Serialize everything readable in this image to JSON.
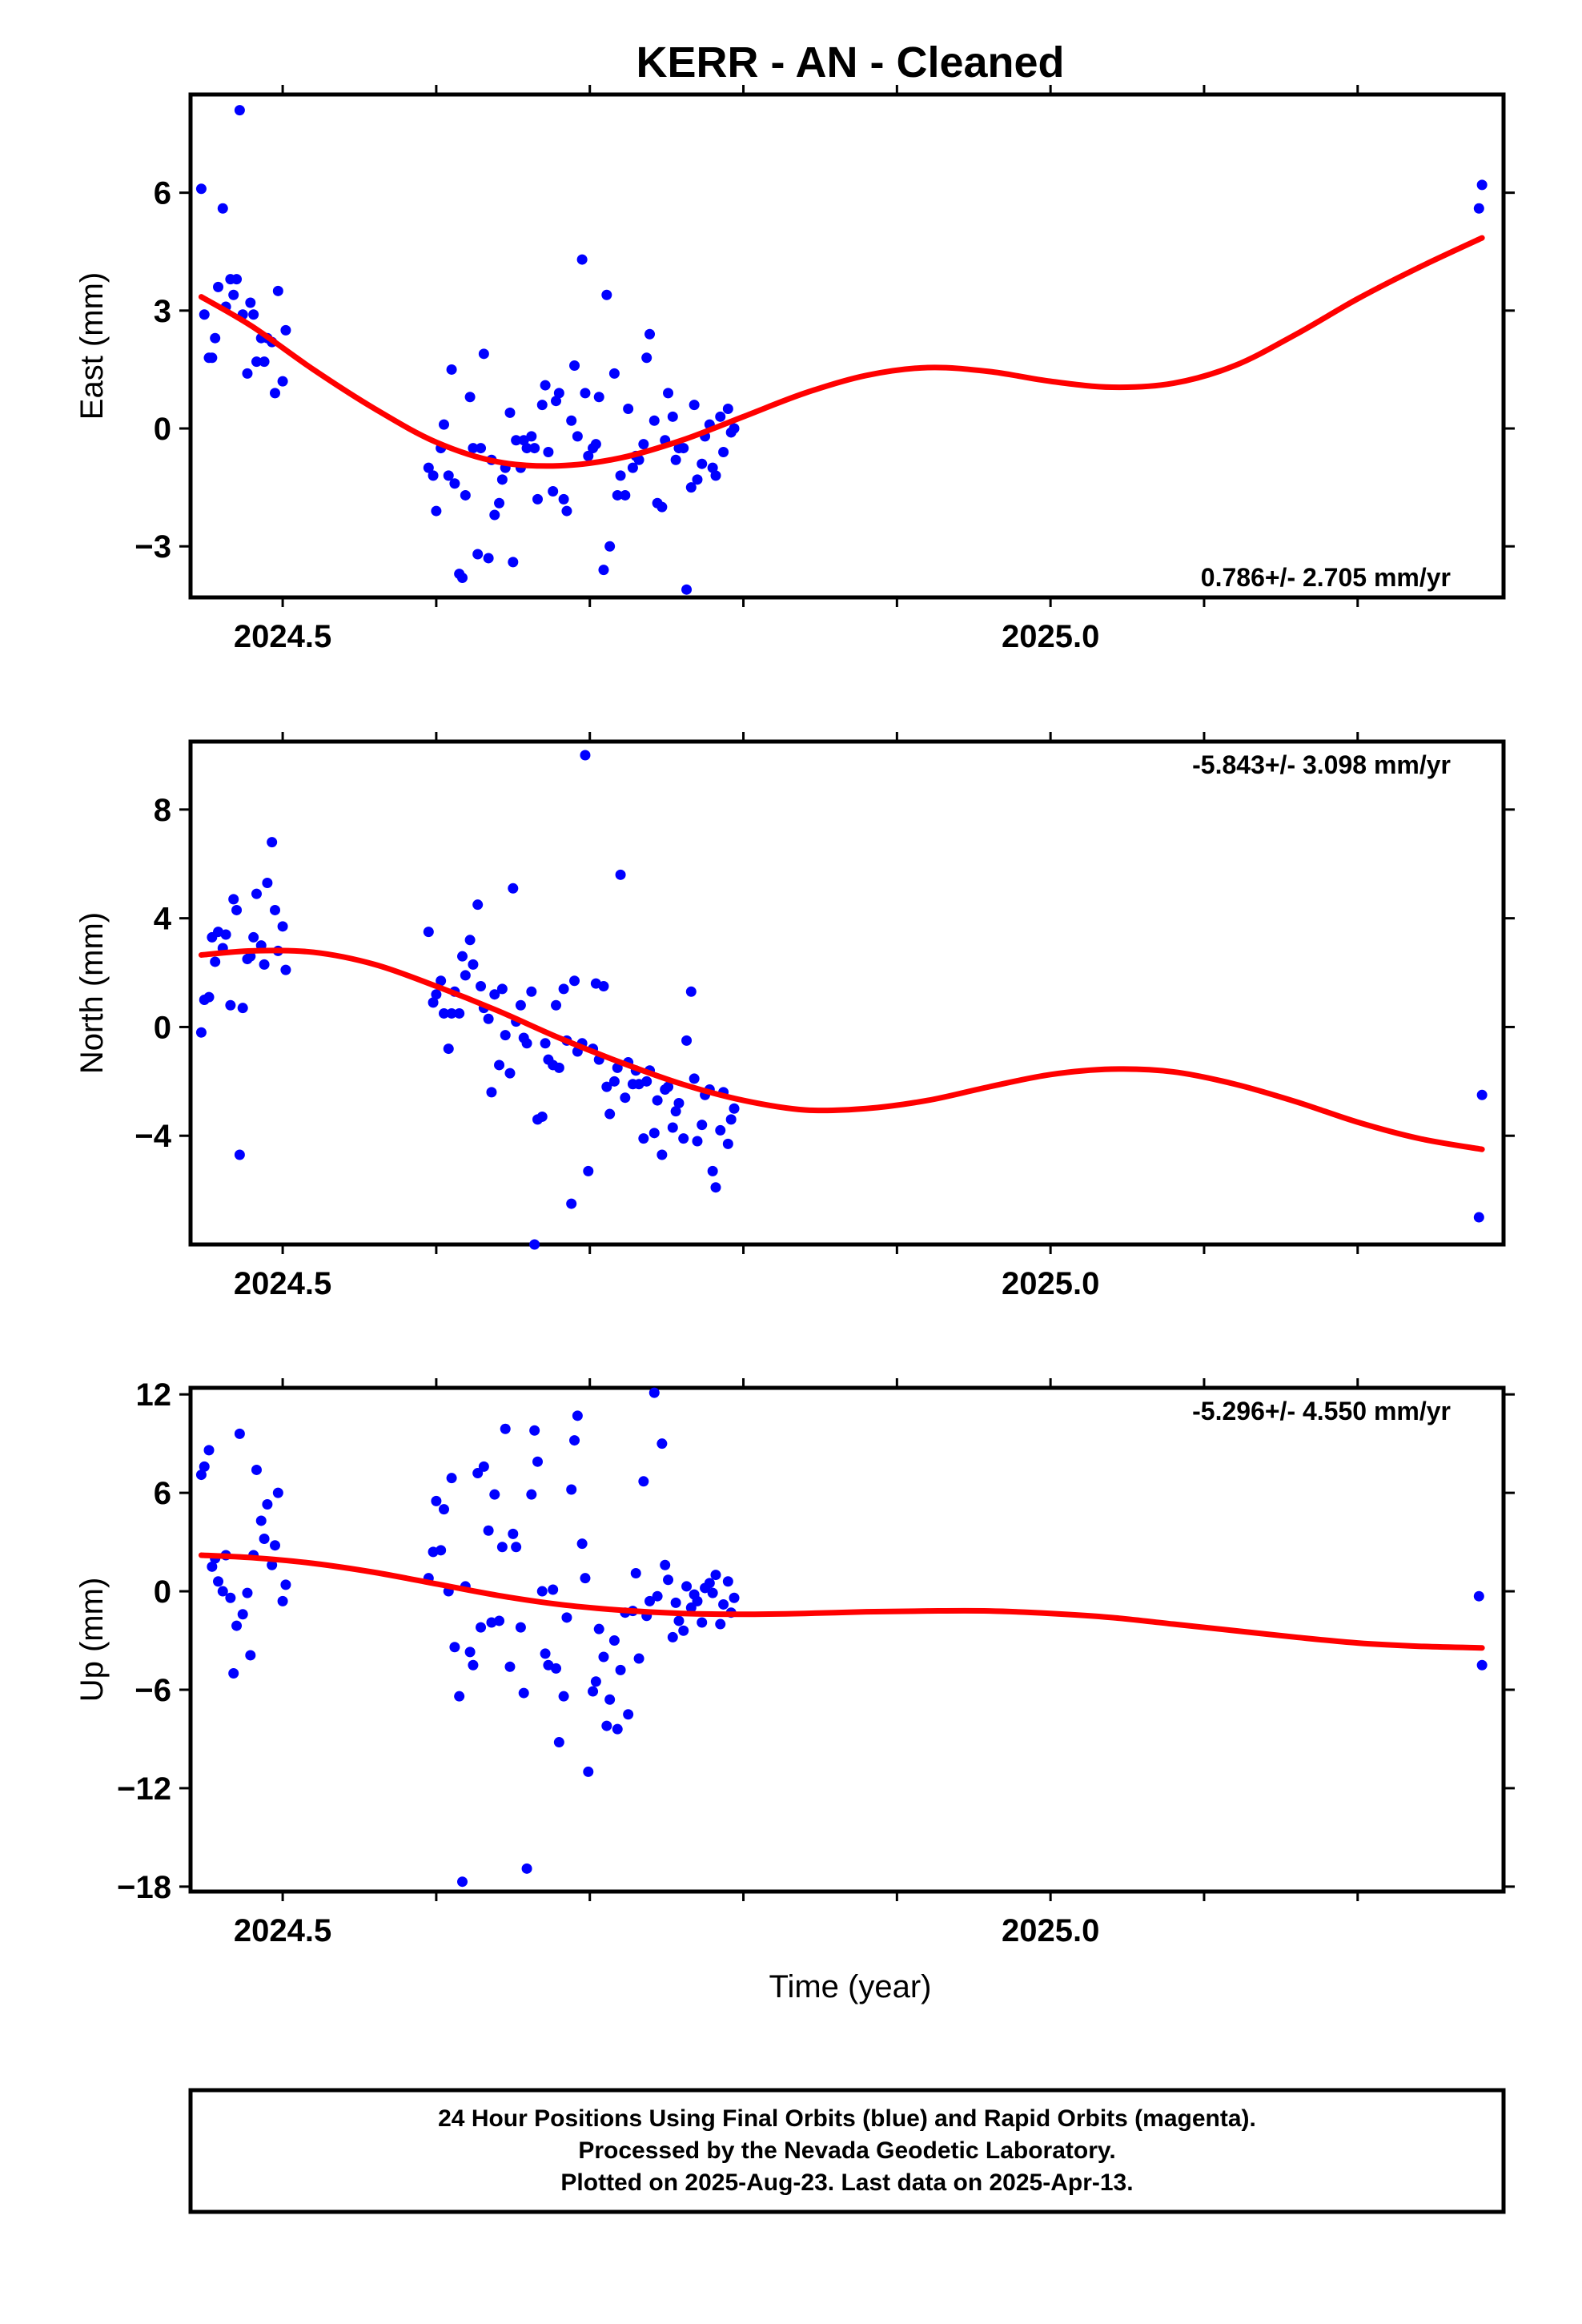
{
  "title": "KERR  - AN - Cleaned",
  "xlabel": "Time (year)",
  "x_ticks": [
    "2024.5",
    "2025.0"
  ],
  "colors": {
    "points": "#0000ff",
    "fit": "#ff0000",
    "frame": "#000000"
  },
  "footer": {
    "line1": "24 Hour Positions Using Final Orbits (blue) and Rapid Orbits (magenta).",
    "line2": "Processed by the Nevada Geodetic Laboratory.",
    "line3": "Plotted on 2025-Aug-23. Last data on 2025-Apr-13."
  },
  "chart_data": [
    {
      "type": "scatter",
      "ylabel": "East (mm)",
      "rate_label": "0.786+/- 2.705 mm/yr",
      "xlim": [
        2024.44,
        2025.295
      ],
      "ylim": [
        -4.3,
        8.5
      ],
      "y_ticks": [
        -3,
        0,
        3,
        6
      ],
      "y_tick_labels": [
        "−3",
        "0",
        "3",
        "6"
      ],
      "points": {
        "x": [
          2024.447,
          2024.449,
          2024.452,
          2024.454,
          2024.456,
          2024.458,
          2024.461,
          2024.463,
          2024.466,
          2024.468,
          2024.47,
          2024.472,
          2024.474,
          2024.477,
          2024.479,
          2024.481,
          2024.483,
          2024.486,
          2024.488,
          2024.49,
          2024.493,
          2024.495,
          2024.497,
          2024.5,
          2024.502,
          2024.595,
          2024.598,
          2024.6,
          2024.603,
          2024.605,
          2024.608,
          2024.61,
          2024.612,
          2024.615,
          2024.617,
          2024.619,
          2024.622,
          2024.624,
          2024.627,
          2024.629,
          2024.631,
          2024.634,
          2024.636,
          2024.638,
          2024.641,
          2024.643,
          2024.645,
          2024.648,
          2024.65,
          2024.652,
          2024.655,
          2024.657,
          2024.659,
          2024.662,
          2024.664,
          2024.666,
          2024.669,
          2024.671,
          2024.673,
          2024.676,
          2024.678,
          2024.68,
          2024.683,
          2024.685,
          2024.688,
          2024.69,
          2024.692,
          2024.695,
          2024.697,
          2024.699,
          2024.702,
          2024.704,
          2024.706,
          2024.709,
          2024.711,
          2024.713,
          2024.716,
          2024.718,
          2024.72,
          2024.723,
          2024.725,
          2024.728,
          2024.73,
          2024.732,
          2024.735,
          2024.737,
          2024.739,
          2024.742,
          2024.744,
          2024.747,
          2024.749,
          2024.751,
          2024.754,
          2024.756,
          2024.758,
          2024.761,
          2024.763,
          2024.766,
          2024.768,
          2024.77,
          2024.773,
          2024.775,
          2024.778,
          2024.78,
          2024.782,
          2024.785,
          2024.787,
          2024.79,
          2024.792,
          2024.794,
          2025.279,
          2025.281
        ],
        "y": [
          6.1,
          2.9,
          1.8,
          1.8,
          2.3,
          3.6,
          5.6,
          3.1,
          3.8,
          3.4,
          3.8,
          8.1,
          2.9,
          1.4,
          3.2,
          2.9,
          1.7,
          2.3,
          1.7,
          2.3,
          2.2,
          0.9,
          3.5,
          1.2,
          2.5,
          -1.0,
          -1.2,
          -2.1,
          -0.5,
          0.1,
          -1.2,
          1.5,
          -1.4,
          -3.7,
          -3.8,
          -1.7,
          0.8,
          -0.5,
          -3.2,
          -0.5,
          1.9,
          -3.3,
          -0.8,
          -2.2,
          -1.9,
          -1.3,
          -1.0,
          0.4,
          -3.4,
          -0.3,
          -1.0,
          -0.3,
          -0.5,
          -0.2,
          -0.5,
          -1.8,
          0.6,
          1.1,
          -0.6,
          -1.6,
          0.7,
          0.9,
          -1.8,
          -2.1,
          0.2,
          1.6,
          -0.2,
          4.3,
          0.9,
          -0.7,
          -0.5,
          -0.4,
          0.8,
          -3.6,
          3.4,
          -3.0,
          1.4,
          -1.7,
          -1.2,
          -1.7,
          0.5,
          -1.0,
          -0.7,
          -0.8,
          -0.4,
          1.8,
          2.4,
          0.2,
          -1.9,
          -2.0,
          -0.3,
          0.9,
          0.3,
          -0.8,
          -0.5,
          -0.5,
          -4.1,
          -1.5,
          0.6,
          -1.3,
          -0.9,
          -0.2,
          0.1,
          -1.0,
          -1.2,
          0.3,
          -0.6,
          0.5,
          -0.1,
          0.0,
          5.6,
          6.2
        ]
      },
      "fit": {
        "x": [
          2024.447,
          2024.48,
          2024.52,
          2024.56,
          2024.6,
          2024.64,
          2024.68,
          2024.72,
          2024.76,
          2024.8,
          2024.84,
          2024.88,
          2024.92,
          2024.96,
          2025.0,
          2025.04,
          2025.08,
          2025.12,
          2025.16,
          2025.2,
          2025.24,
          2025.281
        ],
        "y": [
          3.35,
          2.6,
          1.5,
          0.5,
          -0.35,
          -0.85,
          -0.95,
          -0.75,
          -0.3,
          0.3,
          0.9,
          1.35,
          1.55,
          1.45,
          1.2,
          1.05,
          1.15,
          1.6,
          2.4,
          3.3,
          4.1,
          4.85
        ]
      }
    },
    {
      "type": "scatter",
      "ylabel": "North (mm)",
      "rate_label": "-5.843+/- 3.098 mm/yr",
      "xlim": [
        2024.44,
        2025.295
      ],
      "ylim": [
        -8.0,
        10.5
      ],
      "y_ticks": [
        -4,
        0,
        4,
        8
      ],
      "y_tick_labels": [
        "−4",
        "0",
        "4",
        "8"
      ],
      "points": {
        "x": [
          2024.447,
          2024.449,
          2024.452,
          2024.454,
          2024.456,
          2024.458,
          2024.461,
          2024.463,
          2024.466,
          2024.468,
          2024.47,
          2024.472,
          2024.474,
          2024.477,
          2024.479,
          2024.481,
          2024.483,
          2024.486,
          2024.488,
          2024.49,
          2024.493,
          2024.495,
          2024.497,
          2024.5,
          2024.502,
          2024.595,
          2024.598,
          2024.6,
          2024.603,
          2024.605,
          2024.608,
          2024.61,
          2024.612,
          2024.615,
          2024.617,
          2024.619,
          2024.622,
          2024.624,
          2024.627,
          2024.629,
          2024.631,
          2024.634,
          2024.636,
          2024.638,
          2024.641,
          2024.643,
          2024.645,
          2024.648,
          2024.65,
          2024.652,
          2024.655,
          2024.657,
          2024.659,
          2024.662,
          2024.664,
          2024.666,
          2024.669,
          2024.671,
          2024.673,
          2024.676,
          2024.678,
          2024.68,
          2024.683,
          2024.685,
          2024.688,
          2024.69,
          2024.692,
          2024.695,
          2024.697,
          2024.699,
          2024.702,
          2024.704,
          2024.706,
          2024.709,
          2024.711,
          2024.713,
          2024.716,
          2024.718,
          2024.72,
          2024.723,
          2024.725,
          2024.728,
          2024.73,
          2024.732,
          2024.735,
          2024.737,
          2024.739,
          2024.742,
          2024.744,
          2024.747,
          2024.749,
          2024.751,
          2024.754,
          2024.756,
          2024.758,
          2024.761,
          2024.763,
          2024.766,
          2024.768,
          2024.77,
          2024.773,
          2024.775,
          2024.778,
          2024.78,
          2024.782,
          2024.785,
          2024.787,
          2024.79,
          2024.792,
          2024.794,
          2025.279,
          2025.281
        ],
        "y": [
          -0.2,
          1.0,
          1.1,
          3.3,
          2.4,
          3.5,
          2.9,
          3.4,
          0.8,
          4.7,
          4.3,
          -4.7,
          0.7,
          2.5,
          2.6,
          3.3,
          4.9,
          3.0,
          2.3,
          5.3,
          6.8,
          4.3,
          2.8,
          3.7,
          2.1,
          3.5,
          0.9,
          1.2,
          1.7,
          0.5,
          -0.8,
          0.5,
          1.3,
          0.5,
          2.6,
          1.9,
          3.2,
          2.3,
          4.5,
          1.5,
          0.7,
          0.3,
          -2.4,
          1.2,
          -1.4,
          1.4,
          -0.3,
          -1.7,
          5.1,
          0.2,
          0.8,
          -0.4,
          -0.6,
          1.3,
          -8.0,
          -3.4,
          -3.3,
          -0.6,
          -1.2,
          -1.4,
          0.8,
          -1.5,
          1.4,
          -0.5,
          -6.5,
          1.7,
          -0.9,
          -0.6,
          10.0,
          -5.3,
          -0.8,
          1.6,
          -1.2,
          1.5,
          -2.2,
          -3.2,
          -2.0,
          -1.5,
          5.6,
          -2.6,
          -1.3,
          -2.1,
          -1.6,
          -2.1,
          -4.1,
          -2.0,
          -1.6,
          -3.9,
          -2.7,
          -4.7,
          -2.3,
          -2.2,
          -3.7,
          -3.1,
          -2.8,
          -4.1,
          -0.5,
          1.3,
          -1.9,
          -4.2,
          -3.6,
          -2.5,
          -2.3,
          -5.3,
          -5.9,
          -3.8,
          -2.4,
          -4.3,
          -3.4,
          -3.0,
          -7.0,
          -2.5
        ]
      },
      "fit": {
        "x": [
          2024.447,
          2024.48,
          2024.52,
          2024.56,
          2024.6,
          2024.64,
          2024.68,
          2024.72,
          2024.76,
          2024.8,
          2024.84,
          2024.88,
          2024.92,
          2024.96,
          2025.0,
          2025.04,
          2025.08,
          2025.12,
          2025.16,
          2025.2,
          2025.24,
          2025.281
        ],
        "y": [
          2.65,
          2.8,
          2.75,
          2.3,
          1.5,
          0.6,
          -0.4,
          -1.3,
          -2.1,
          -2.7,
          -3.05,
          -3.0,
          -2.7,
          -2.2,
          -1.75,
          -1.55,
          -1.65,
          -2.1,
          -2.75,
          -3.5,
          -4.1,
          -4.5
        ]
      }
    },
    {
      "type": "scatter",
      "ylabel": "Up (mm)",
      "rate_label": "-5.296+/- 4.550 mm/yr",
      "xlim": [
        2024.44,
        2025.295
      ],
      "ylim": [
        -18.3,
        12.4
      ],
      "y_ticks": [
        -18,
        -12,
        -6,
        0,
        6,
        12
      ],
      "y_tick_labels": [
        "−18",
        "−12",
        "−6",
        "0",
        "6",
        "12"
      ],
      "points": {
        "x": [
          2024.447,
          2024.449,
          2024.452,
          2024.454,
          2024.456,
          2024.458,
          2024.461,
          2024.463,
          2024.466,
          2024.468,
          2024.47,
          2024.472,
          2024.474,
          2024.477,
          2024.479,
          2024.481,
          2024.483,
          2024.486,
          2024.488,
          2024.49,
          2024.493,
          2024.495,
          2024.497,
          2024.5,
          2024.502,
          2024.595,
          2024.598,
          2024.6,
          2024.603,
          2024.605,
          2024.608,
          2024.61,
          2024.612,
          2024.615,
          2024.617,
          2024.619,
          2024.622,
          2024.624,
          2024.627,
          2024.629,
          2024.631,
          2024.634,
          2024.636,
          2024.638,
          2024.641,
          2024.643,
          2024.645,
          2024.648,
          2024.65,
          2024.652,
          2024.655,
          2024.657,
          2024.659,
          2024.662,
          2024.664,
          2024.666,
          2024.669,
          2024.671,
          2024.673,
          2024.676,
          2024.678,
          2024.68,
          2024.683,
          2024.685,
          2024.688,
          2024.69,
          2024.692,
          2024.695,
          2024.697,
          2024.699,
          2024.702,
          2024.704,
          2024.706,
          2024.709,
          2024.711,
          2024.713,
          2024.716,
          2024.718,
          2024.72,
          2024.723,
          2024.725,
          2024.728,
          2024.73,
          2024.732,
          2024.735,
          2024.737,
          2024.739,
          2024.742,
          2024.744,
          2024.747,
          2024.749,
          2024.751,
          2024.754,
          2024.756,
          2024.758,
          2024.761,
          2024.763,
          2024.766,
          2024.768,
          2024.77,
          2024.773,
          2024.775,
          2024.778,
          2024.78,
          2024.782,
          2024.785,
          2024.787,
          2024.79,
          2024.792,
          2024.794,
          2025.279,
          2025.281
        ],
        "y": [
          7.1,
          7.6,
          8.6,
          1.5,
          2.0,
          0.6,
          0.0,
          2.2,
          -0.4,
          -5.0,
          -2.1,
          9.6,
          -1.4,
          -0.1,
          -3.9,
          2.2,
          7.4,
          4.3,
          3.2,
          5.3,
          1.6,
          2.8,
          6.0,
          -0.6,
          0.4,
          0.8,
          2.4,
          5.5,
          2.5,
          5.0,
          0.0,
          6.9,
          -3.4,
          -6.4,
          -17.7,
          0.3,
          -3.7,
          -4.5,
          7.2,
          -2.2,
          7.6,
          3.7,
          -1.9,
          5.9,
          -1.8,
          2.7,
          9.9,
          -4.6,
          3.5,
          2.7,
          -2.2,
          -6.2,
          -16.9,
          5.9,
          9.8,
          7.9,
          0.0,
          -3.8,
          -4.5,
          0.1,
          -4.7,
          -9.2,
          -6.4,
          -1.6,
          6.2,
          9.2,
          10.7,
          2.9,
          0.8,
          -11.0,
          -6.1,
          -5.5,
          -2.3,
          -4.0,
          -8.2,
          -6.6,
          -3.0,
          -8.4,
          -4.8,
          -1.3,
          -7.5,
          -1.2,
          1.1,
          -4.1,
          6.7,
          -1.5,
          -0.6,
          12.1,
          -0.3,
          9.0,
          1.6,
          0.7,
          -2.8,
          -0.7,
          -1.8,
          -2.4,
          0.3,
          -1.0,
          -0.2,
          -0.6,
          -1.9,
          0.2,
          0.5,
          -0.1,
          1.0,
          -2.0,
          -0.8,
          0.6,
          -1.3,
          -0.4,
          -0.3,
          -4.5
        ]
      },
      "fit": {
        "x": [
          2024.447,
          2024.48,
          2024.52,
          2024.56,
          2024.6,
          2024.64,
          2024.68,
          2024.72,
          2024.76,
          2024.8,
          2024.84,
          2024.88,
          2024.92,
          2024.96,
          2025.0,
          2025.04,
          2025.08,
          2025.12,
          2025.16,
          2025.2,
          2025.24,
          2025.281
        ],
        "y": [
          2.2,
          2.05,
          1.7,
          1.15,
          0.45,
          -0.25,
          -0.8,
          -1.15,
          -1.35,
          -1.4,
          -1.35,
          -1.25,
          -1.2,
          -1.2,
          -1.35,
          -1.6,
          -2.0,
          -2.4,
          -2.8,
          -3.15,
          -3.35,
          -3.45
        ]
      }
    }
  ]
}
